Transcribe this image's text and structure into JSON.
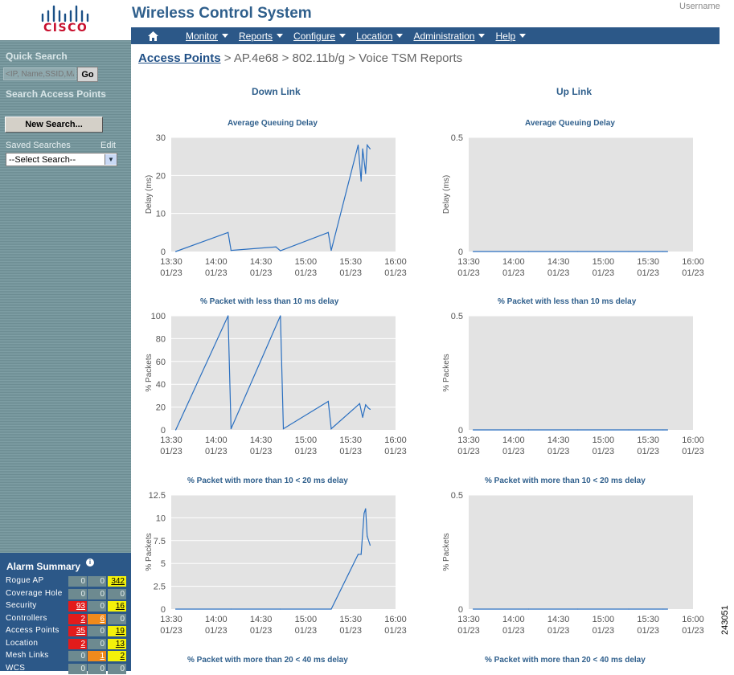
{
  "logo": {
    "text": "CISCO"
  },
  "header": {
    "title": "Wireless Control System",
    "username_label": "Username"
  },
  "nav": {
    "items": [
      {
        "label": "Monitor"
      },
      {
        "label": "Reports"
      },
      {
        "label": "Configure"
      },
      {
        "label": "Location"
      },
      {
        "label": "Administration"
      },
      {
        "label": "Help"
      }
    ]
  },
  "sidebar": {
    "quick_search_title": "Quick Search",
    "quick_search_placeholder": "<IP, Name,SSID,MAC>",
    "go_label": "Go",
    "search_ap_title": "Search Access Points",
    "new_search_label": "New Search...",
    "saved_searches_label": "Saved Searches",
    "edit_label": "Edit",
    "select_value": "--Select Search--"
  },
  "alarm_summary": {
    "title": "Alarm Summary",
    "rows": [
      {
        "label": "Rogue AP",
        "critical": "0",
        "major": "0",
        "minor": "342"
      },
      {
        "label": "Coverage Hole",
        "critical": "0",
        "major": "0",
        "minor": "0"
      },
      {
        "label": "Security",
        "critical": "93",
        "major": "0",
        "minor": "16"
      },
      {
        "label": "Controllers",
        "critical": "2",
        "major": "6",
        "minor": "0"
      },
      {
        "label": "Access Points",
        "critical": "35",
        "major": "0",
        "minor": "19"
      },
      {
        "label": "Location",
        "critical": "2",
        "major": "0",
        "minor": "13"
      },
      {
        "label": "Mesh Links",
        "critical": "0",
        "major": "1",
        "minor": "2"
      },
      {
        "label": "WCS",
        "critical": "0",
        "major": "0",
        "minor": "0"
      }
    ],
    "colors": {
      "critical": "#e31b1b",
      "major": "#f08a1c",
      "minor": "#f4f10a",
      "none": "#6d8a90"
    }
  },
  "breadcrumb": {
    "link": "Access Points",
    "rest": " > AP.4e68 > 802.11b/g > Voice TSM Reports"
  },
  "columns": {
    "left": "Down Link",
    "right": "Up Link"
  },
  "chart_titles": {
    "row1": "Average Queuing Delay",
    "row2": "% Packet with less than 10 ms delay",
    "row3": "% Packet with more than 10 < 20 ms delay",
    "row4": "% Packet with more than 20 < 40 ms delay"
  },
  "figure_id": "243051",
  "chart_data": [
    {
      "type": "line",
      "title": "Average Queuing Delay",
      "ylabel": "Delay (ms)",
      "yticks": [
        "0",
        "10",
        "20",
        "30"
      ],
      "ylim": [
        0,
        30
      ],
      "x": [
        "13:33",
        "14:08",
        "14:10",
        "14:40",
        "14:43",
        "15:15",
        "15:17",
        "15:35",
        "15:37",
        "15:38",
        "15:40",
        "15:41",
        "15:43"
      ],
      "values": [
        0,
        5,
        0.3,
        1.2,
        0.2,
        5,
        0.3,
        28,
        18.5,
        27,
        20.5,
        28,
        27
      ],
      "xticks": [
        "13:30",
        "14:00",
        "14:30",
        "15:00",
        "15:30",
        "16:00"
      ],
      "xdate": "01/23",
      "xlim": [
        "13:30",
        "16:00"
      ],
      "grid": true,
      "color": "#2a6fc0"
    },
    {
      "type": "line",
      "title": "Average Queuing Delay",
      "ylabel": "Delay (ms)",
      "yticks": [
        "0",
        "0.5"
      ],
      "ylim": [
        0,
        0.5
      ],
      "x": [
        "13:33",
        "14:10",
        "14:43",
        "15:17",
        "15:40",
        "15:43"
      ],
      "values": [
        0,
        0,
        0,
        0,
        0,
        0
      ],
      "xticks": [
        "13:30",
        "14:00",
        "14:30",
        "15:00",
        "15:30",
        "16:00"
      ],
      "xdate": "01/23",
      "xlim": [
        "13:30",
        "16:00"
      ],
      "grid": true,
      "color": "#2a6fc0"
    },
    {
      "type": "line",
      "title": "% Packet with less than 10 ms delay",
      "ylabel": "% Packets",
      "yticks": [
        "0",
        "20",
        "40",
        "60",
        "80",
        "100"
      ],
      "ylim": [
        0,
        100
      ],
      "x": [
        "13:33",
        "14:08",
        "14:10",
        "14:43",
        "14:45",
        "15:15",
        "15:17",
        "15:36",
        "15:38",
        "15:40",
        "15:42",
        "15:43"
      ],
      "values": [
        0,
        100,
        1,
        100,
        1,
        25,
        1,
        23,
        11,
        22,
        19,
        18
      ],
      "xticks": [
        "13:30",
        "14:00",
        "14:30",
        "15:00",
        "15:30",
        "16:00"
      ],
      "xdate": "01/23",
      "xlim": [
        "13:30",
        "16:00"
      ],
      "grid": true,
      "color": "#2a6fc0"
    },
    {
      "type": "line",
      "title": "% Packet with less than 10 ms delay",
      "ylabel": "% Packets",
      "yticks": [
        "0",
        "0.5"
      ],
      "ylim": [
        0,
        0.5
      ],
      "x": [
        "13:33",
        "14:10",
        "14:43",
        "15:17",
        "15:40",
        "15:43"
      ],
      "values": [
        0,
        0,
        0,
        0,
        0,
        0
      ],
      "xticks": [
        "13:30",
        "14:00",
        "14:30",
        "15:00",
        "15:30",
        "16:00"
      ],
      "xdate": "01/23",
      "xlim": [
        "13:30",
        "16:00"
      ],
      "grid": true,
      "color": "#2a6fc0"
    },
    {
      "type": "line",
      "title": "% Packet with more than 10 < 20 ms delay",
      "ylabel": "% Packets",
      "yticks": [
        "0",
        "2.5",
        "5",
        "7.5",
        "10",
        "12.5"
      ],
      "ylim": [
        0,
        12.5
      ],
      "x": [
        "13:33",
        "14:10",
        "14:43",
        "15:17",
        "15:35",
        "15:37",
        "15:39",
        "15:40",
        "15:41",
        "15:43"
      ],
      "values": [
        0,
        0,
        0,
        0,
        6,
        6,
        10.5,
        11,
        8,
        7
      ],
      "xticks": [
        "13:30",
        "14:00",
        "14:30",
        "15:00",
        "15:30",
        "16:00"
      ],
      "xdate": "01/23",
      "xlim": [
        "13:30",
        "16:00"
      ],
      "grid": true,
      "color": "#2a6fc0"
    },
    {
      "type": "line",
      "title": "% Packet with more than 10 < 20 ms delay",
      "ylabel": "% Packets",
      "yticks": [
        "0",
        "0.5"
      ],
      "ylim": [
        0,
        0.5
      ],
      "x": [
        "13:33",
        "14:10",
        "14:43",
        "15:17",
        "15:40",
        "15:43"
      ],
      "values": [
        0,
        0,
        0,
        0,
        0,
        0
      ],
      "xticks": [
        "13:30",
        "14:00",
        "14:30",
        "15:00",
        "15:30",
        "16:00"
      ],
      "xdate": "01/23",
      "xlim": [
        "13:30",
        "16:00"
      ],
      "grid": true,
      "color": "#2a6fc0"
    }
  ]
}
